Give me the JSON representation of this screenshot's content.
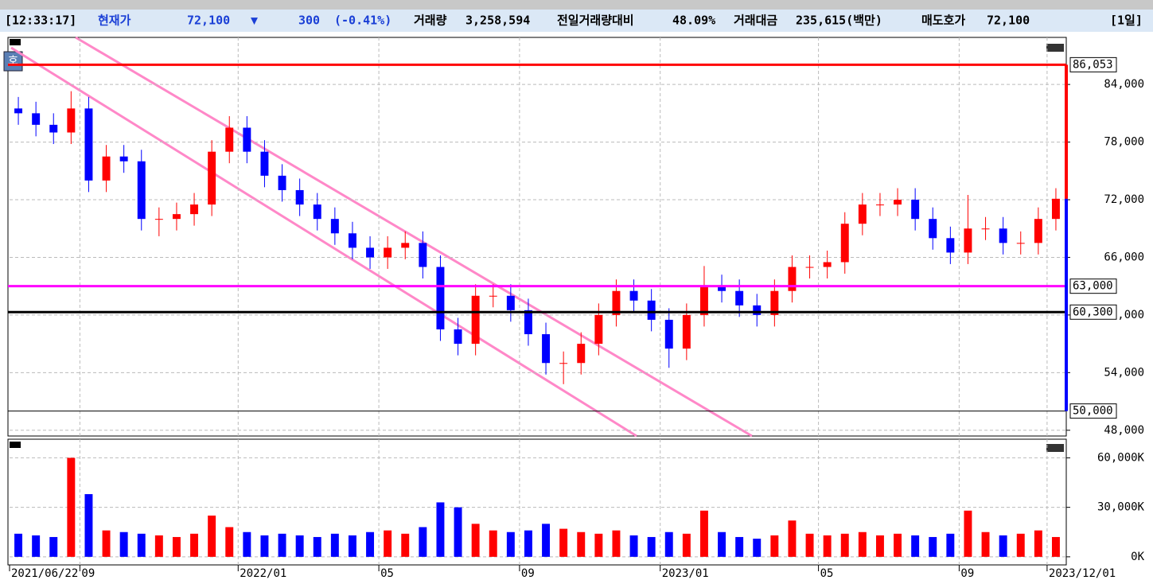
{
  "header": {
    "time": "[12:33:17]",
    "price_label": "현재가",
    "price": "72,100",
    "arrow": "▼",
    "change": "300",
    "change_pct": "(-0.41%)",
    "volume_label": "거래량",
    "volume": "3,258,594",
    "vs_prev_label": "전일거래량대비",
    "vs_prev": "48.09%",
    "amount_label": "거래대금",
    "amount": "235,615(백만)",
    "ask_label": "매도호가",
    "ask": "72,100",
    "period": "[1일]"
  },
  "side_button": "호",
  "chart_data": {
    "type": "candlestick",
    "categories": [
      "2021/06/22",
      null,
      null,
      null,
      "09",
      null,
      null,
      null,
      null,
      null,
      null,
      null,
      null,
      "2022/01",
      null,
      null,
      null,
      null,
      null,
      null,
      null,
      "05",
      null,
      null,
      null,
      null,
      null,
      null,
      null,
      "09",
      null,
      null,
      null,
      null,
      null,
      null,
      null,
      "2023/01",
      null,
      null,
      null,
      null,
      null,
      null,
      null,
      null,
      "05",
      null,
      null,
      null,
      null,
      null,
      null,
      null,
      "09",
      null,
      null,
      null,
      null,
      "2023/12/01"
    ],
    "open": [
      81500,
      81000,
      79800,
      79000,
      81500,
      74000,
      76500,
      76000,
      70000,
      70000,
      70500,
      71500,
      77000,
      79500,
      77000,
      74500,
      73000,
      71500,
      70000,
      68500,
      67000,
      66000,
      67000,
      67500,
      65000,
      58500,
      57000,
      62000,
      62000,
      60500,
      58000,
      55000,
      55000,
      57000,
      60000,
      62500,
      61500,
      59500,
      56500,
      60000,
      63000,
      62500,
      61000,
      60000,
      62500,
      65000,
      65000,
      65500,
      69500,
      71500,
      71500,
      72000,
      70000,
      68000,
      66500,
      69000,
      69000,
      67500,
      67500,
      70000
    ],
    "high": [
      82700,
      82200,
      81000,
      83300,
      82700,
      77700,
      77700,
      77200,
      71200,
      71700,
      72700,
      78200,
      80700,
      80700,
      78200,
      75700,
      74200,
      72700,
      71200,
      69700,
      68200,
      68200,
      68700,
      68700,
      66200,
      59700,
      63200,
      63200,
      63200,
      61700,
      59200,
      56200,
      58200,
      61200,
      63700,
      63700,
      62700,
      60700,
      61200,
      65100,
      64200,
      63700,
      62200,
      63700,
      66200,
      66200,
      66700,
      70700,
      72700,
      72700,
      73200,
      73200,
      71200,
      69200,
      72500,
      70200,
      70200,
      68700,
      71200,
      73200
    ],
    "low": [
      79800,
      78600,
      77800,
      77800,
      72800,
      72800,
      74800,
      68800,
      68200,
      68800,
      69300,
      70300,
      75800,
      75800,
      73300,
      71800,
      70300,
      68800,
      67300,
      65800,
      64800,
      64800,
      65800,
      63800,
      57300,
      55800,
      55800,
      60800,
      59300,
      56800,
      53800,
      52800,
      53800,
      55800,
      58800,
      60300,
      58300,
      54500,
      55300,
      58800,
      61300,
      59800,
      58800,
      58800,
      61300,
      63800,
      63800,
      64300,
      68300,
      70300,
      70300,
      68800,
      66800,
      65300,
      65300,
      67800,
      66300,
      66300,
      66300,
      68800
    ],
    "close": [
      81000,
      79800,
      79000,
      81500,
      74000,
      76500,
      76000,
      70000,
      70000,
      70500,
      71500,
      77000,
      79500,
      77000,
      74500,
      73000,
      71500,
      70000,
      68500,
      67000,
      66000,
      67000,
      67500,
      65000,
      58500,
      57000,
      62000,
      62000,
      60500,
      58000,
      55000,
      55000,
      57000,
      60000,
      62500,
      61500,
      59500,
      56500,
      60000,
      63000,
      62500,
      61000,
      60000,
      62500,
      65000,
      65000,
      65500,
      69500,
      71500,
      71500,
      72000,
      70000,
      68000,
      66500,
      69000,
      69000,
      67500,
      67500,
      70000,
      72100
    ],
    "up_color": "#ff0000",
    "down_color": "#0000ff",
    "ylim": [
      47400,
      88900
    ],
    "yticks": [
      {
        "value": 48000,
        "label": "48,000"
      },
      {
        "value": 54000,
        "label": "54,000"
      },
      {
        "value": 60000,
        "label": "60,000"
      },
      {
        "value": 66000,
        "label": "66,000"
      },
      {
        "value": 72000,
        "label": "72,000"
      },
      {
        "value": 78000,
        "label": "78,000"
      },
      {
        "value": 84000,
        "label": "84,000"
      }
    ],
    "grid": true,
    "levels": [
      {
        "value": 86053,
        "label": "86,053",
        "color": "#ff0000"
      },
      {
        "value": 63000,
        "label": "63,000",
        "color": "#ff00ff"
      },
      {
        "value": 60300,
        "label": "60,300",
        "color": "#000000"
      },
      {
        "value": 50000,
        "label": "50,000",
        "color": "#000000"
      }
    ],
    "volume": {
      "values": [
        14000,
        13000,
        12000,
        60000,
        38000,
        16000,
        15000,
        14000,
        13000,
        12000,
        14000,
        25000,
        18000,
        15000,
        13000,
        14000,
        13000,
        12000,
        14000,
        13000,
        15000,
        16000,
        14000,
        18000,
        33000,
        30000,
        20000,
        16000,
        15000,
        16000,
        20000,
        17000,
        15000,
        14000,
        16000,
        13000,
        12000,
        15000,
        14000,
        28000,
        15000,
        12000,
        11000,
        13000,
        22000,
        14000,
        13000,
        14000,
        15000,
        13000,
        14000,
        13000,
        12000,
        14000,
        28000,
        15000,
        13000,
        14000,
        16000,
        12000
      ],
      "ylim": [
        -4900,
        71300
      ],
      "yticks": [
        {
          "value": 0,
          "label": "0K"
        },
        {
          "value": 30000,
          "label": "30,000K"
        },
        {
          "value": 60000,
          "label": "60,000K"
        }
      ]
    }
  }
}
